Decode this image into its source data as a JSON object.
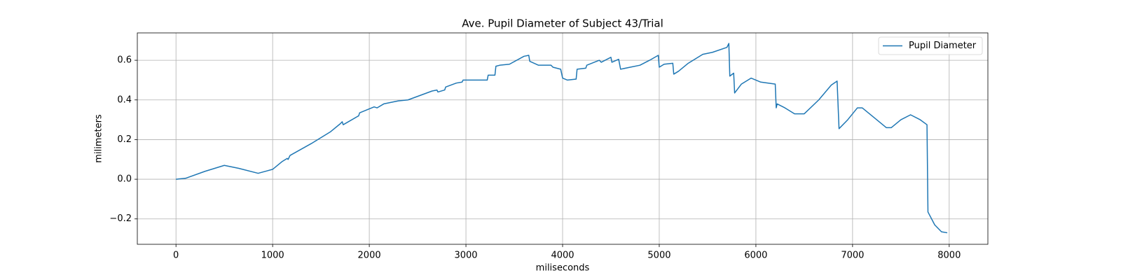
{
  "chart_data": {
    "type": "line",
    "title": "Ave. Pupil Diameter of Subject 43/Trial",
    "x_label": "miliseconds",
    "y_label": "milimeters",
    "xlim": [
      -400,
      8400
    ],
    "ylim": [
      -0.328,
      0.738
    ],
    "xticks": [
      0,
      1000,
      2000,
      3000,
      4000,
      5000,
      6000,
      7000,
      8000
    ],
    "yticks": [
      {
        "value": -0.2,
        "label": "−0.2"
      },
      {
        "value": 0,
        "label": "0.0"
      },
      0.2,
      0.4,
      0.6
    ],
    "grid": true,
    "legend": "upper right",
    "x": [
      0,
      100,
      300,
      500,
      650,
      850,
      1000,
      1100,
      1150,
      1160,
      1180,
      1400,
      1600,
      1700,
      1720,
      1730,
      1890,
      1900,
      2050,
      2080,
      2150,
      2300,
      2400,
      2650,
      2700,
      2710,
      2780,
      2790,
      2900,
      2960,
      2970,
      3100,
      3220,
      3230,
      3300,
      3310,
      3350,
      3450,
      3600,
      3650,
      3660,
      3750,
      3880,
      3900,
      3980,
      4000,
      4050,
      4140,
      4150,
      4240,
      4250,
      4380,
      4400,
      4500,
      4510,
      4580,
      4600,
      4700,
      4800,
      4900,
      4990,
      5000,
      5050,
      5140,
      5150,
      5200,
      5300,
      5450,
      5550,
      5700,
      5720,
      5730,
      5770,
      5780,
      5850,
      5950,
      6050,
      6200,
      6210,
      6220,
      6300,
      6400,
      6500,
      6650,
      6780,
      6840,
      6860,
      6950,
      7050,
      7100,
      7250,
      7350,
      7400,
      7500,
      7600,
      7700,
      7770,
      7780,
      7850,
      7920,
      7980
    ],
    "series": [
      {
        "name": "Pupil Diameter",
        "color": "#1f77b4",
        "values": [
          0,
          0.005,
          0.04,
          0.07,
          0.055,
          0.03,
          0.05,
          0.09,
          0.105,
          0.1,
          0.12,
          0.18,
          0.24,
          0.28,
          0.29,
          0.275,
          0.32,
          0.335,
          0.365,
          0.36,
          0.38,
          0.395,
          0.4,
          0.445,
          0.45,
          0.44,
          0.45,
          0.465,
          0.485,
          0.49,
          0.5,
          0.5,
          0.5,
          0.525,
          0.525,
          0.57,
          0.575,
          0.58,
          0.62,
          0.625,
          0.595,
          0.575,
          0.575,
          0.565,
          0.555,
          0.51,
          0.5,
          0.505,
          0.555,
          0.56,
          0.575,
          0.6,
          0.59,
          0.615,
          0.59,
          0.605,
          0.555,
          0.565,
          0.575,
          0.6,
          0.625,
          0.565,
          0.58,
          0.585,
          0.53,
          0.545,
          0.585,
          0.63,
          0.64,
          0.665,
          0.685,
          0.52,
          0.535,
          0.435,
          0.48,
          0.51,
          0.49,
          0.48,
          0.36,
          0.38,
          0.36,
          0.33,
          0.33,
          0.4,
          0.475,
          0.495,
          0.255,
          0.3,
          0.36,
          0.36,
          0.3,
          0.26,
          0.26,
          0.3,
          0.325,
          0.3,
          0.275,
          -0.165,
          -0.23,
          -0.265,
          -0.27
        ]
      }
    ]
  }
}
